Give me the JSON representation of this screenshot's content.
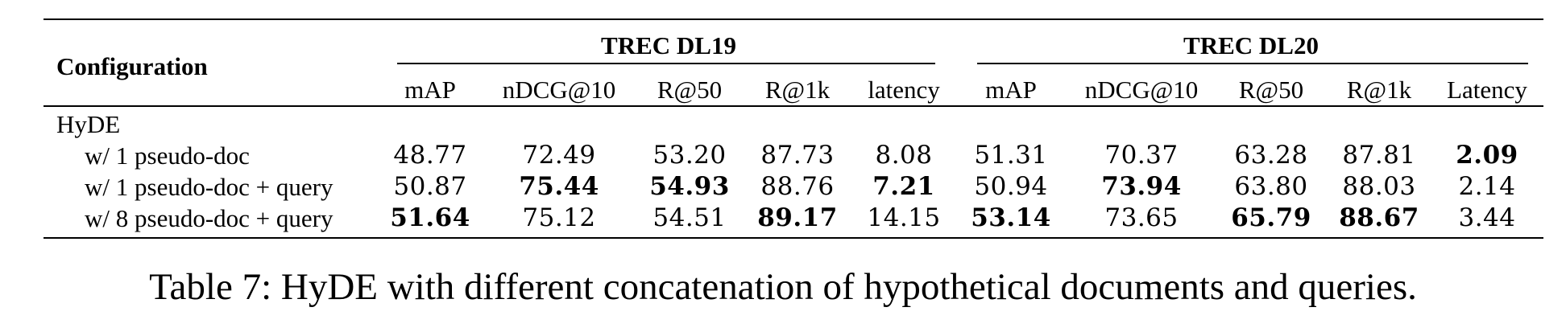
{
  "table": {
    "config_header": "Configuration",
    "groups": [
      {
        "name": "TREC DL19",
        "columns": [
          "mAP",
          "nDCG@10",
          "R@50",
          "R@1k",
          "latency"
        ]
      },
      {
        "name": "TREC DL20",
        "columns": [
          "mAP",
          "nDCG@10",
          "R@50",
          "R@1k",
          "Latency"
        ]
      }
    ],
    "section_label": "HyDE",
    "rows": [
      {
        "label": "w/ 1 pseudo-doc",
        "values": [
          "48.77",
          "72.49",
          "53.20",
          "87.73",
          "8.08",
          "51.31",
          "70.37",
          "63.28",
          "87.81",
          "2.09"
        ],
        "bold": [
          false,
          false,
          false,
          false,
          false,
          false,
          false,
          false,
          false,
          true
        ]
      },
      {
        "label": "w/ 1 pseudo-doc + query",
        "values": [
          "50.87",
          "75.44",
          "54.93",
          "88.76",
          "7.21",
          "50.94",
          "73.94",
          "63.80",
          "88.03",
          "2.14"
        ],
        "bold": [
          false,
          true,
          true,
          false,
          true,
          false,
          true,
          false,
          false,
          false
        ]
      },
      {
        "label": "w/ 8 pseudo-doc + query",
        "values": [
          "51.64",
          "75.12",
          "54.51",
          "89.17",
          "14.15",
          "53.14",
          "73.65",
          "65.79",
          "88.67",
          "3.44"
        ],
        "bold": [
          true,
          false,
          false,
          true,
          false,
          true,
          false,
          true,
          true,
          false
        ]
      }
    ]
  },
  "caption": "Table 7:  HyDE with different concatenation of hypothetical documents and queries."
}
